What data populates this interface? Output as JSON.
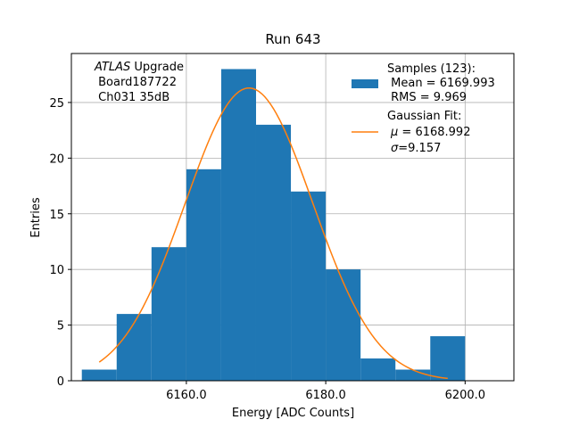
{
  "colors": {
    "bar": "#1f77b4",
    "fit": "#ff7f0e",
    "grid": "#b0b0b0",
    "axis": "#000000"
  },
  "chart_data": {
    "type": "bar",
    "title": "Run 643",
    "xlabel": "Energy [ADC Counts]",
    "ylabel": "Entries",
    "xlim": [
      6143.5,
      6207.0
    ],
    "ylim": [
      0,
      29.4
    ],
    "grid": true,
    "xticks": [
      6160.0,
      6180.0,
      6200.0
    ],
    "xtick_labels": [
      "6160.0",
      "6180.0",
      "6200.0"
    ],
    "yticks": [
      0,
      5,
      10,
      15,
      20,
      25
    ],
    "ytick_labels": [
      "0",
      "5",
      "10",
      "15",
      "20",
      "25"
    ],
    "bin_edges": [
      6145,
      6150,
      6155,
      6160,
      6165,
      6170,
      6175,
      6180,
      6185,
      6190,
      6195,
      6200,
      6205
    ],
    "values": [
      1,
      6,
      12,
      19,
      28,
      23,
      17,
      10,
      2,
      1,
      4,
      0
    ],
    "fit": {
      "x_start": 6147.5,
      "x_end": 6197.5,
      "mu": 6168.992,
      "sigma": 9.157,
      "amplitude": 26.3
    },
    "annotation": {
      "line1_italic": "ATLAS",
      "line1_rest": " Upgrade",
      "line2": " Board187722",
      "line3": " Ch031 35dB"
    },
    "legend": {
      "position": "top-right",
      "samples_lines": [
        "Samples (123):",
        " Mean = 6169.993",
        " RMS = 9.969"
      ],
      "fit_title": "Gaussian Fit:",
      "fit_mu_symbol": "μ",
      "fit_mu_rest": " = 6168.992",
      "fit_sigma_symbol": "σ",
      "fit_sigma_rest": "=9.157"
    }
  }
}
